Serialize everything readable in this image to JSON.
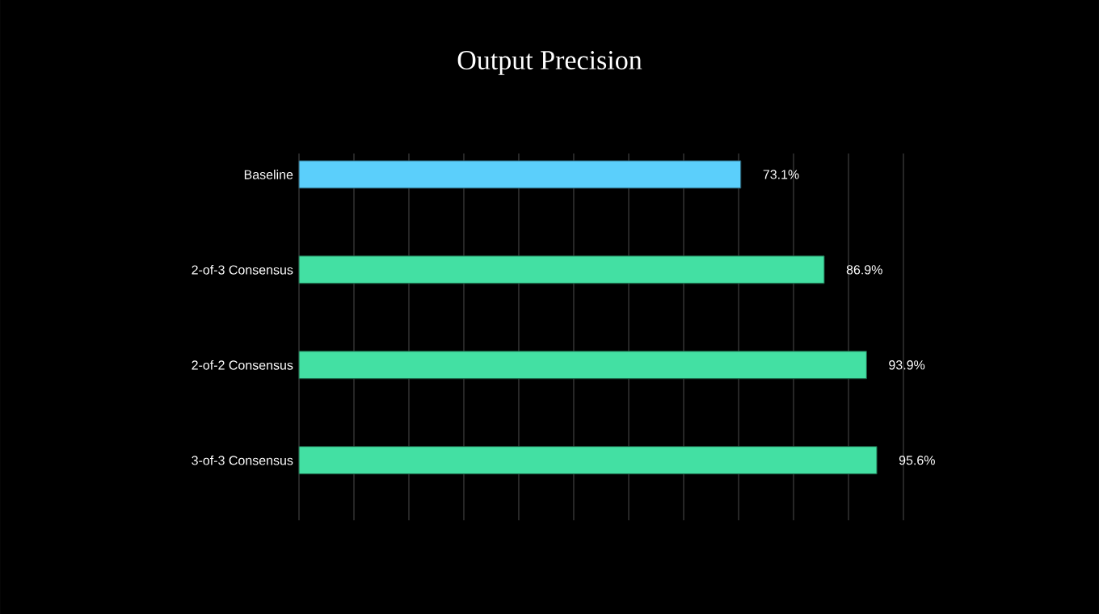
{
  "chart_data": {
    "type": "bar",
    "orientation": "horizontal",
    "title": "Output Precision",
    "categories": [
      "Baseline",
      "2-of-3 Consensus",
      "2-of-2 Consensus",
      "3-of-3 Consensus"
    ],
    "values": [
      73.1,
      86.9,
      93.9,
      95.6
    ],
    "value_labels": [
      "73.1%",
      "86.9%",
      "93.9%",
      "95.6%"
    ],
    "colors": [
      "#5bcffb",
      "#43e0a3",
      "#43e0a3",
      "#43e0a3"
    ],
    "xlim": [
      0,
      100
    ],
    "xticks": [
      {
        "value": 0,
        "label": null
      },
      {
        "value": 9.09,
        "label": null
      },
      {
        "value": 18.18,
        "label": null
      },
      {
        "value": 27.27,
        "label": null
      },
      {
        "value": 36.36,
        "label": null
      },
      {
        "value": 45.45,
        "label": null
      },
      {
        "value": 54.55,
        "label": null
      },
      {
        "value": 63.64,
        "label": null
      },
      {
        "value": 72.73,
        "label": null
      },
      {
        "value": 81.82,
        "label": null
      },
      {
        "value": 90.91,
        "label": null
      },
      {
        "value": 100,
        "label": null
      }
    ],
    "grid": "x",
    "tick_labels": "y"
  }
}
